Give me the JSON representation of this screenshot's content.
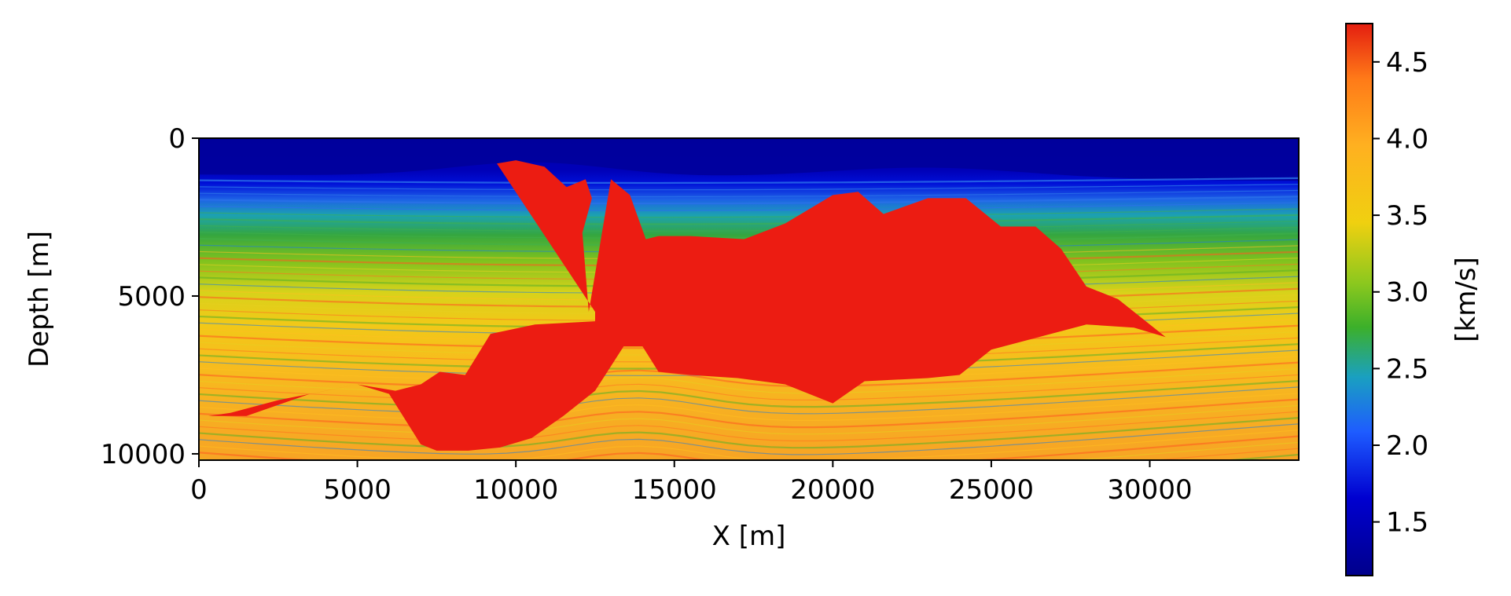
{
  "chart_data": {
    "type": "heatmap",
    "title": "",
    "xlabel": "X [m]",
    "ylabel": "Depth [m]",
    "xlim": [
      0,
      34700
    ],
    "ylim": [
      10200,
      0
    ],
    "x_ticks": [
      0,
      5000,
      10000,
      15000,
      20000,
      25000,
      30000
    ],
    "x_tick_labels": [
      "0",
      "5000",
      "10000",
      "15000",
      "20000",
      "25000",
      "30000"
    ],
    "y_ticks": [
      0,
      5000,
      10000
    ],
    "y_tick_labels": [
      "0",
      "5000",
      "10000"
    ],
    "colorbar": {
      "label": "[km/s]",
      "range": [
        1.15,
        4.75
      ],
      "ticks": [
        1.5,
        2.0,
        2.5,
        3.0,
        3.5,
        4.0,
        4.5
      ],
      "tick_labels": [
        "1.5",
        "2.0",
        "2.5",
        "3.0",
        "3.5",
        "4.0",
        "4.5"
      ],
      "colormap": [
        "#00008b",
        "#0000d0",
        "#1e5cff",
        "#1aa0c0",
        "#3cb02a",
        "#8cc81e",
        "#f0d010",
        "#ffb020",
        "#ff7a18",
        "#e41e10"
      ]
    },
    "salt_body": {
      "velocity_km_s": 4.5,
      "color": "#ec1c12",
      "outline_x_m": [
        9400,
        10000,
        10900,
        11600,
        12200,
        12400,
        12100,
        12300,
        13000,
        13600,
        14100,
        14500,
        15500,
        17200,
        18500,
        20000,
        20800,
        21600,
        23000,
        24200,
        25300,
        26400,
        27200,
        28000,
        29000,
        30500,
        29500,
        28000,
        25000,
        24000,
        23000,
        21000,
        20000,
        18500,
        17000,
        15500,
        14500,
        14000,
        13400,
        12500,
        11500,
        10500,
        9500,
        8500,
        7500,
        7000,
        6000,
        5000,
        4000,
        2500,
        1000,
        300,
        1500,
        3500,
        5000,
        6200,
        7000,
        7600,
        8400,
        9200,
        10600,
        12500,
        12500
      ],
      "outline_depth_m": [
        800,
        700,
        900,
        1550,
        1300,
        1900,
        3000,
        5500,
        1300,
        1800,
        3200,
        3100,
        3100,
        3200,
        2700,
        1800,
        1700,
        2400,
        1900,
        1900,
        2800,
        2800,
        3500,
        4700,
        5100,
        6300,
        6000,
        5900,
        6700,
        7500,
        7600,
        7700,
        8400,
        7800,
        7600,
        7500,
        7400,
        6600,
        6600,
        8000,
        8800,
        9500,
        9800,
        9900,
        9900,
        9700,
        8100,
        7800,
        8000,
        8300,
        8700,
        8800,
        8800,
        8100,
        7800,
        8000,
        7800,
        7400,
        7500,
        6200,
        5900,
        5800,
        5500
      ]
    },
    "annotations": [],
    "legend": "none",
    "grid": false
  }
}
